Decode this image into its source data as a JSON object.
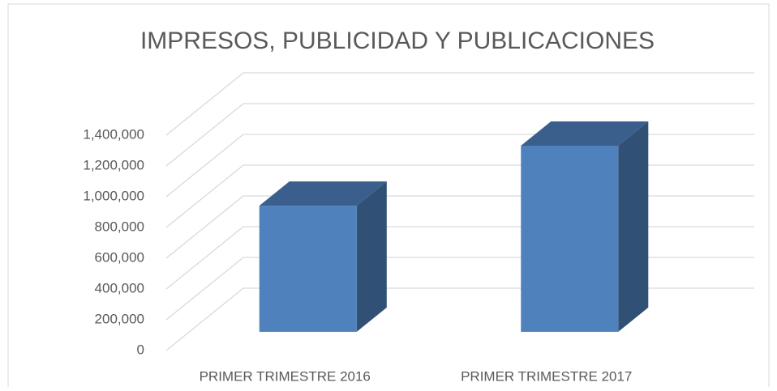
{
  "chart_data": {
    "type": "bar3d",
    "title": "IMPRESOS, PUBLICIDAD Y PUBLICACIONES",
    "categories": [
      "PRIMER TRIMESTRE 2016",
      "PRIMER TRIMESTRE 2017"
    ],
    "values": [
      820000,
      1210000
    ],
    "color": "#4f81bd",
    "ylim": [
      0,
      1400000
    ],
    "yticks": [
      0,
      {
        "value": 200000,
        "label": "200,000"
      },
      {
        "value": 400000,
        "label": "400,000"
      },
      {
        "value": 600000,
        "label": "600,000"
      },
      {
        "value": 800000,
        "label": "800,000"
      },
      {
        "value": 1000000,
        "label": "1,000,000"
      },
      {
        "value": 1200000,
        "label": "1,200,000"
      },
      {
        "value": 1400000,
        "label": "1,400,000"
      }
    ],
    "grid": true
  }
}
